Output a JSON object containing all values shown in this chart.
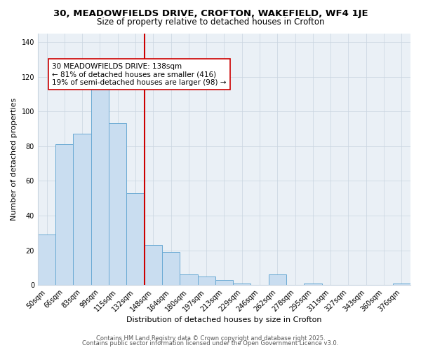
{
  "title": "30, MEADOWFIELDS DRIVE, CROFTON, WAKEFIELD, WF4 1JE",
  "subtitle": "Size of property relative to detached houses in Crofton",
  "xlabel": "Distribution of detached houses by size in Crofton",
  "ylabel": "Number of detached properties",
  "bar_labels": [
    "50sqm",
    "66sqm",
    "83sqm",
    "99sqm",
    "115sqm",
    "132sqm",
    "148sqm",
    "164sqm",
    "180sqm",
    "197sqm",
    "213sqm",
    "229sqm",
    "246sqm",
    "262sqm",
    "278sqm",
    "295sqm",
    "311sqm",
    "327sqm",
    "343sqm",
    "360sqm",
    "376sqm"
  ],
  "bar_values": [
    29,
    81,
    87,
    113,
    93,
    53,
    23,
    19,
    6,
    5,
    3,
    1,
    0,
    6,
    0,
    1,
    0,
    0,
    0,
    0,
    1
  ],
  "bar_color": "#c9ddf0",
  "bar_edge_color": "#6aaad4",
  "vline_color": "#cc0000",
  "annotation_text": "30 MEADOWFIELDS DRIVE: 138sqm\n← 81% of detached houses are smaller (416)\n19% of semi-detached houses are larger (98) →",
  "annotation_box_color": "#ffffff",
  "annotation_box_edge": "#cc0000",
  "ylim": [
    0,
    145
  ],
  "yticks": [
    0,
    20,
    40,
    60,
    80,
    100,
    120,
    140
  ],
  "grid_color": "#c8d4e0",
  "bg_color": "#eaf0f6",
  "footer1": "Contains HM Land Registry data © Crown copyright and database right 2025.",
  "footer2": "Contains public sector information licensed under the Open Government Licence v3.0.",
  "title_fontsize": 9.5,
  "subtitle_fontsize": 8.5,
  "axis_label_fontsize": 8,
  "tick_fontsize": 7,
  "annotation_fontsize": 7.5,
  "footer_fontsize": 6
}
